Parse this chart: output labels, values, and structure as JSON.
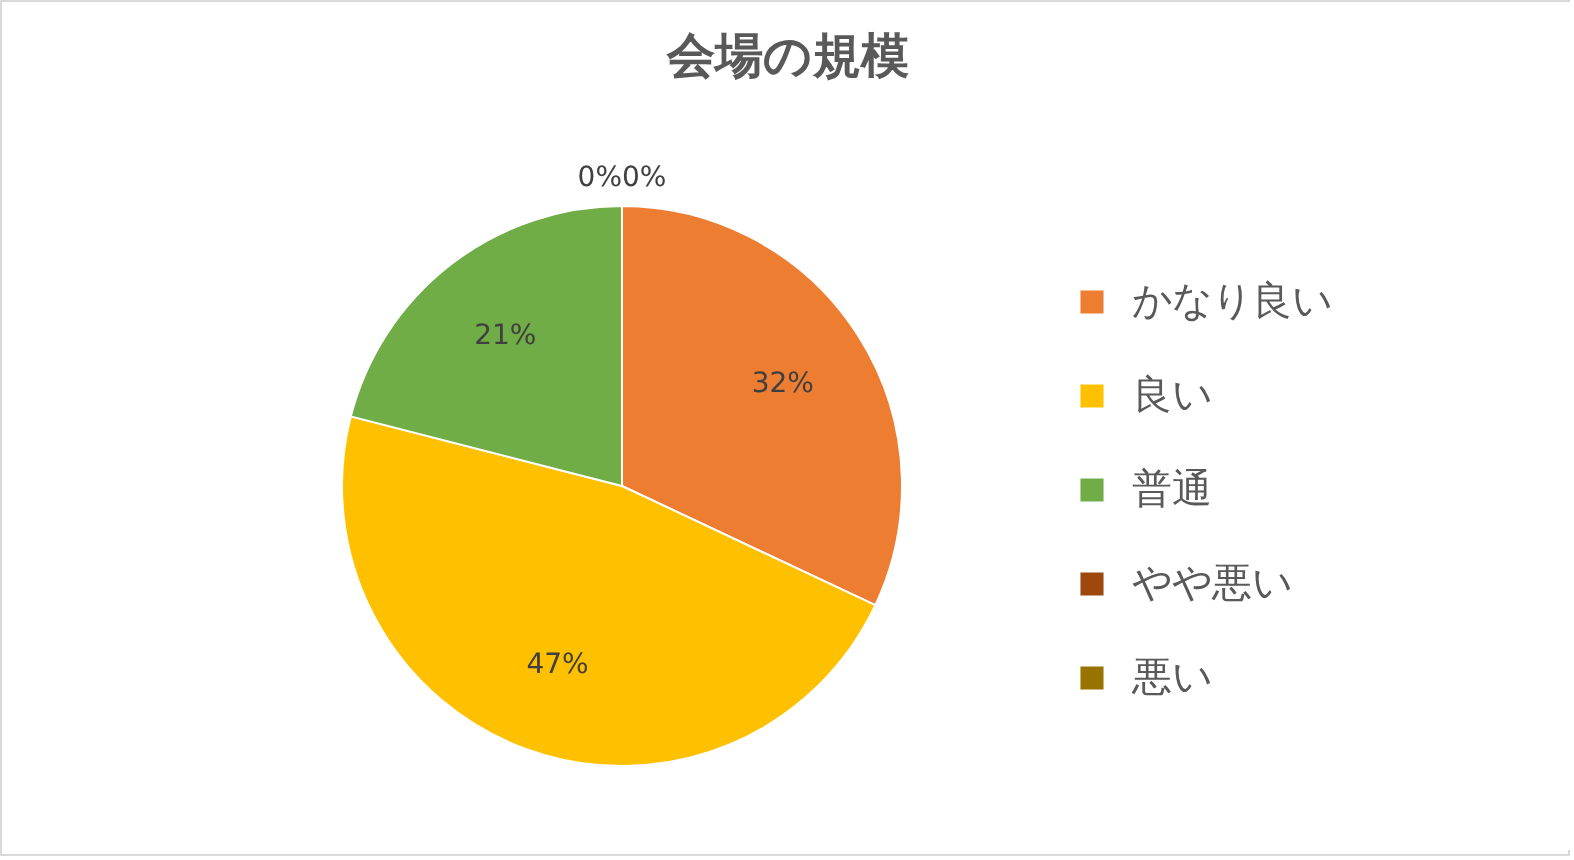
{
  "chart_data": {
    "type": "pie",
    "title": "会場の規模",
    "categories": [
      "かなり良い",
      "良い",
      "普通",
      "やや悪い",
      "悪い"
    ],
    "values": [
      32,
      47,
      21,
      0,
      0
    ],
    "colors": [
      "#ed7d31",
      "#ffc000",
      "#70ad47",
      "#9e480e",
      "#997300"
    ],
    "value_labels": [
      "32%",
      "47%",
      "21%",
      "0%",
      "0%"
    ],
    "legend": "right"
  }
}
